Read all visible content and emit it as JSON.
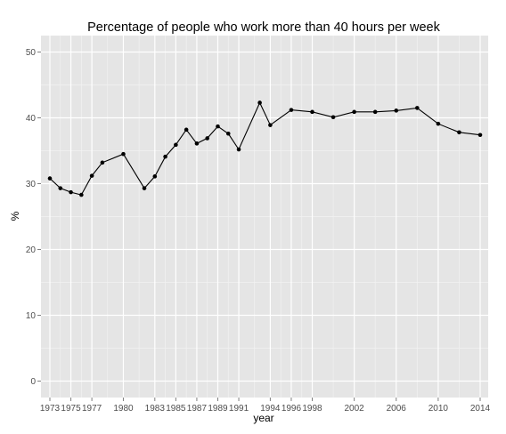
{
  "chart_data": {
    "type": "line",
    "title": "Percentage of people who work more than 40 hours per week",
    "xlabel": "year",
    "ylabel": "%",
    "ylim": [
      -2.5,
      52.5
    ],
    "yticks": [
      0,
      10,
      20,
      30,
      40,
      50
    ],
    "x": [
      "1973",
      "1974",
      "1975",
      "1976",
      "1977",
      "1978",
      "1980",
      "1982",
      "1983",
      "1984",
      "1985",
      "1986",
      "1987",
      "1988",
      "1989",
      "1990",
      "1991",
      "1993",
      "1994",
      "1996",
      "1998",
      "2000",
      "2002",
      "2004",
      "2006",
      "2008",
      "2010",
      "2012",
      "2014"
    ],
    "x_tick_labels": [
      "1973",
      "1975",
      "1977",
      "1980",
      "1983",
      "1985",
      "1987",
      "1989",
      "1991",
      "1994",
      "1996",
      "1998",
      "2002",
      "2006",
      "2010",
      "2014"
    ],
    "values": [
      30.8,
      29.3,
      28.7,
      28.3,
      31.2,
      33.2,
      34.5,
      29.3,
      31.1,
      34.1,
      35.9,
      38.2,
      36.1,
      36.9,
      38.7,
      37.6,
      35.2,
      42.3,
      38.9,
      41.2,
      40.9,
      40.1,
      40.9,
      40.9,
      41.1,
      41.5,
      39.1,
      37.8,
      37.4
    ],
    "grid": true,
    "colors": {
      "panel": "#e5e5e5",
      "grid_major": "#ffffff",
      "grid_minor": "#f2f2f2",
      "line": "#000000",
      "point": "#000000",
      "tick_text": "#4d4d4d"
    }
  }
}
